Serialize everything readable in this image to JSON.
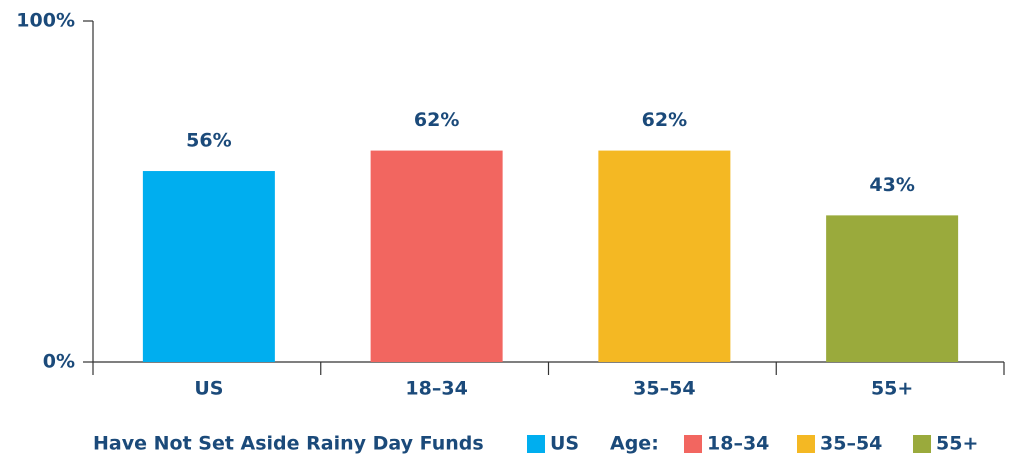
{
  "chart_data": {
    "type": "bar",
    "categories": [
      "US",
      "18–34",
      "35–54",
      "55+"
    ],
    "values": [
      56,
      62,
      62,
      43
    ],
    "value_labels": [
      "56%",
      "62%",
      "62%",
      "43%"
    ],
    "colors": [
      "#00aeef",
      "#f26660",
      "#f4b823",
      "#9aaa3c"
    ],
    "ylim": [
      0,
      100
    ],
    "yticks": [
      {
        "value": 0,
        "label": "0%"
      },
      {
        "value": 100,
        "label": "100%"
      }
    ],
    "legend_title": "Have Not Set Aside Rainy Day Funds",
    "legend_group_label": "Age:"
  }
}
